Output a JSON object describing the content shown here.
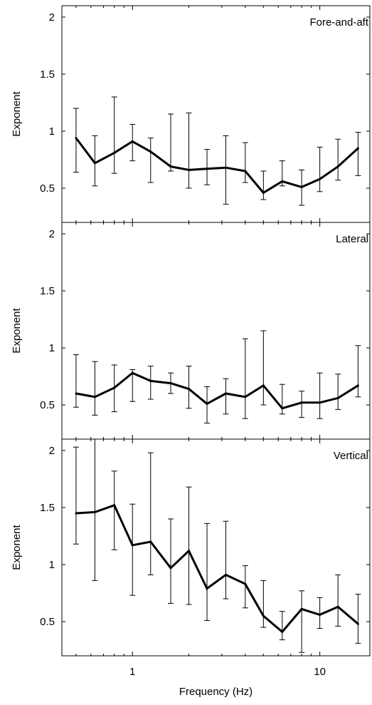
{
  "figure": {
    "xlabel": "Frequency (Hz)"
  },
  "chart_data": [
    {
      "type": "line",
      "panel_label": "Fore-and-aft",
      "ylabel": "Exponent",
      "xscale": "log",
      "xlim": [
        0.42,
        18.5
      ],
      "ylim": [
        0.2,
        2.1
      ],
      "yticks": [
        0.5,
        1,
        1.5,
        2
      ],
      "yticklabels": [
        "0.5",
        "1",
        "1.5",
        "2"
      ],
      "grid": false,
      "x": [
        0.5,
        0.63,
        0.8,
        1.0,
        1.25,
        1.6,
        2.0,
        2.5,
        3.15,
        4.0,
        5.0,
        6.3,
        8.0,
        10.0,
        12.5,
        16.0
      ],
      "y": [
        0.94,
        0.72,
        0.81,
        0.91,
        0.82,
        0.69,
        0.66,
        0.67,
        0.68,
        0.65,
        0.46,
        0.56,
        0.51,
        0.58,
        0.69,
        0.85
      ],
      "err_high": [
        1.2,
        0.96,
        1.3,
        1.06,
        0.94,
        1.15,
        1.16,
        0.84,
        0.96,
        0.9,
        0.65,
        0.74,
        0.66,
        0.86,
        0.93,
        0.99
      ],
      "err_low": [
        0.64,
        0.52,
        0.63,
        0.74,
        0.55,
        0.65,
        0.5,
        0.53,
        0.36,
        0.55,
        0.4,
        0.52,
        0.35,
        0.47,
        0.57,
        0.61
      ]
    },
    {
      "type": "line",
      "panel_label": "Lateral",
      "ylabel": "Exponent",
      "xscale": "log",
      "xlim": [
        0.42,
        18.5
      ],
      "ylim": [
        0.2,
        2.1
      ],
      "yticks": [
        0.5,
        1,
        1.5,
        2
      ],
      "yticklabels": [
        "0.5",
        "1",
        "1.5",
        "2"
      ],
      "grid": false,
      "x": [
        0.5,
        0.63,
        0.8,
        1.0,
        1.25,
        1.6,
        2.0,
        2.5,
        3.15,
        4.0,
        5.0,
        6.3,
        8.0,
        10.0,
        12.5,
        16.0
      ],
      "y": [
        0.6,
        0.57,
        0.65,
        0.78,
        0.71,
        0.69,
        0.64,
        0.51,
        0.6,
        0.57,
        0.67,
        0.47,
        0.52,
        0.52,
        0.56,
        0.67
      ],
      "err_high": [
        0.94,
        0.88,
        0.85,
        0.81,
        0.84,
        0.78,
        0.84,
        0.66,
        0.73,
        1.08,
        1.15,
        0.68,
        0.62,
        0.78,
        0.77,
        1.02
      ],
      "err_low": [
        0.48,
        0.41,
        0.44,
        0.53,
        0.55,
        0.6,
        0.47,
        0.34,
        0.42,
        0.38,
        0.5,
        0.42,
        0.39,
        0.38,
        0.46,
        0.57
      ]
    },
    {
      "type": "line",
      "panel_label": "Vertical",
      "ylabel": "Exponent",
      "xscale": "log",
      "xlim": [
        0.42,
        18.5
      ],
      "ylim": [
        0.2,
        2.1
      ],
      "yticks": [
        0.5,
        1,
        1.5,
        2
      ],
      "yticklabels": [
        "0.5",
        "1",
        "1.5",
        "2"
      ],
      "xticks": [
        1,
        10
      ],
      "xticklabels": [
        "1",
        "10"
      ],
      "grid": false,
      "x": [
        0.5,
        0.63,
        0.8,
        1.0,
        1.25,
        1.6,
        2.0,
        2.5,
        3.15,
        4.0,
        5.0,
        6.3,
        8.0,
        10.0,
        12.5,
        16.0
      ],
      "y": [
        1.45,
        1.46,
        1.52,
        1.17,
        1.2,
        0.97,
        1.12,
        0.79,
        0.91,
        0.83,
        0.55,
        0.41,
        0.61,
        0.56,
        0.63,
        0.48
      ],
      "err_high": [
        2.03,
        2.1,
        1.82,
        1.53,
        1.98,
        1.4,
        1.68,
        1.36,
        1.38,
        0.99,
        0.86,
        0.59,
        0.77,
        0.71,
        0.91,
        0.74
      ],
      "err_low": [
        1.18,
        0.86,
        1.13,
        0.73,
        0.91,
        0.66,
        0.65,
        0.51,
        0.7,
        0.62,
        0.45,
        0.34,
        0.23,
        0.44,
        0.46,
        0.31
      ]
    }
  ]
}
